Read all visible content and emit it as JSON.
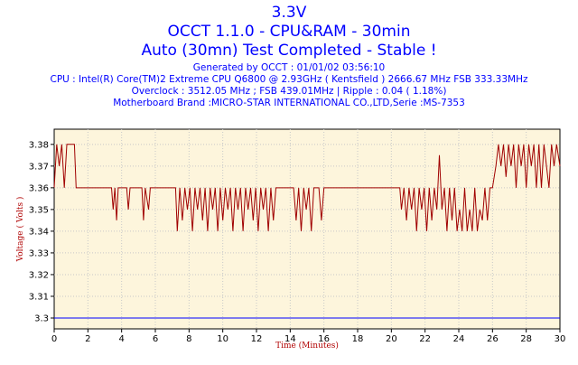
{
  "header": {
    "title": "3.3V",
    "subtitle": "OCCT 1.1.0 - CPU&RAM - 30min",
    "status": "Auto (30mn) Test Completed - Stable !",
    "generated": "Generated by OCCT : 01/01/02 03:56:10",
    "cpu": "CPU : Intel(R) Core(TM)2 Extreme CPU Q6800  @ 2.93GHz ( Kentsfield ) 2666.67 MHz FSB 333.33MHz",
    "overclock": "Overclock : 3512.05 MHz ; FSB 439.01MHz | Ripple : 0.04 ( 1.18%)",
    "motherboard": "Motherboard Brand :MICRO-STAR INTERNATIONAL CO.,LTD,Serie :MS-7353"
  },
  "colors": {
    "title": "#0000ff",
    "plot_bg": "#fdf5dc",
    "series": "#a00000",
    "reference": "#0000ff",
    "grid": "#c8c8c8"
  },
  "chart_data": {
    "type": "line",
    "xlabel": "Time (Minutes)",
    "ylabel": "Voltage ( Volts )",
    "xlim": [
      0,
      30
    ],
    "ylim": [
      3.295,
      3.387
    ],
    "xticks": [
      0,
      2,
      4,
      6,
      8,
      10,
      12,
      14,
      16,
      18,
      20,
      22,
      24,
      26,
      28,
      30
    ],
    "yticks": [
      3.3,
      3.31,
      3.32,
      3.33,
      3.34,
      3.35,
      3.36,
      3.37,
      3.38
    ],
    "grid": true,
    "reference_line": {
      "value": 3.3
    },
    "series": [
      {
        "values": [
          [
            0,
            3.36
          ],
          [
            0.15,
            3.38
          ],
          [
            0.3,
            3.37
          ],
          [
            0.45,
            3.38
          ],
          [
            0.6,
            3.36
          ],
          [
            0.75,
            3.38
          ],
          [
            1.0,
            3.38
          ],
          [
            1.2,
            3.38
          ],
          [
            1.3,
            3.36
          ],
          [
            3.4,
            3.36
          ],
          [
            3.5,
            3.35
          ],
          [
            3.6,
            3.36
          ],
          [
            3.7,
            3.345
          ],
          [
            3.8,
            3.36
          ],
          [
            4.3,
            3.36
          ],
          [
            4.4,
            3.35
          ],
          [
            4.5,
            3.36
          ],
          [
            5.2,
            3.36
          ],
          [
            5.3,
            3.345
          ],
          [
            5.4,
            3.36
          ],
          [
            5.6,
            3.35
          ],
          [
            5.7,
            3.36
          ],
          [
            7.2,
            3.36
          ],
          [
            7.3,
            3.34
          ],
          [
            7.45,
            3.36
          ],
          [
            7.6,
            3.345
          ],
          [
            7.75,
            3.36
          ],
          [
            7.9,
            3.35
          ],
          [
            8.05,
            3.36
          ],
          [
            8.2,
            3.34
          ],
          [
            8.35,
            3.36
          ],
          [
            8.5,
            3.35
          ],
          [
            8.65,
            3.36
          ],
          [
            8.8,
            3.345
          ],
          [
            8.95,
            3.36
          ],
          [
            9.1,
            3.34
          ],
          [
            9.25,
            3.36
          ],
          [
            9.4,
            3.35
          ],
          [
            9.55,
            3.36
          ],
          [
            9.7,
            3.34
          ],
          [
            9.85,
            3.36
          ],
          [
            10.0,
            3.345
          ],
          [
            10.15,
            3.36
          ],
          [
            10.3,
            3.35
          ],
          [
            10.45,
            3.36
          ],
          [
            10.6,
            3.34
          ],
          [
            10.75,
            3.36
          ],
          [
            10.9,
            3.35
          ],
          [
            11.05,
            3.36
          ],
          [
            11.2,
            3.34
          ],
          [
            11.35,
            3.36
          ],
          [
            11.5,
            3.35
          ],
          [
            11.65,
            3.36
          ],
          [
            11.8,
            3.345
          ],
          [
            11.95,
            3.36
          ],
          [
            12.1,
            3.34
          ],
          [
            12.25,
            3.36
          ],
          [
            12.4,
            3.35
          ],
          [
            12.55,
            3.36
          ],
          [
            12.7,
            3.34
          ],
          [
            12.85,
            3.36
          ],
          [
            13.0,
            3.345
          ],
          [
            13.15,
            3.36
          ],
          [
            14.2,
            3.36
          ],
          [
            14.35,
            3.345
          ],
          [
            14.5,
            3.36
          ],
          [
            14.65,
            3.34
          ],
          [
            14.8,
            3.36
          ],
          [
            14.95,
            3.35
          ],
          [
            15.1,
            3.36
          ],
          [
            15.25,
            3.34
          ],
          [
            15.4,
            3.36
          ],
          [
            15.7,
            3.36
          ],
          [
            15.85,
            3.345
          ],
          [
            16.0,
            3.36
          ],
          [
            20.5,
            3.36
          ],
          [
            20.6,
            3.35
          ],
          [
            20.75,
            3.36
          ],
          [
            20.9,
            3.345
          ],
          [
            21.05,
            3.36
          ],
          [
            21.2,
            3.35
          ],
          [
            21.35,
            3.36
          ],
          [
            21.5,
            3.34
          ],
          [
            21.65,
            3.36
          ],
          [
            21.8,
            3.35
          ],
          [
            21.95,
            3.36
          ],
          [
            22.1,
            3.34
          ],
          [
            22.25,
            3.36
          ],
          [
            22.4,
            3.345
          ],
          [
            22.55,
            3.36
          ],
          [
            22.7,
            3.35
          ],
          [
            22.85,
            3.375
          ],
          [
            23.0,
            3.35
          ],
          [
            23.15,
            3.36
          ],
          [
            23.3,
            3.34
          ],
          [
            23.45,
            3.36
          ],
          [
            23.6,
            3.345
          ],
          [
            23.75,
            3.36
          ],
          [
            23.9,
            3.34
          ],
          [
            24.05,
            3.35
          ],
          [
            24.2,
            3.34
          ],
          [
            24.35,
            3.36
          ],
          [
            24.5,
            3.34
          ],
          [
            24.65,
            3.35
          ],
          [
            24.8,
            3.34
          ],
          [
            24.95,
            3.36
          ],
          [
            25.1,
            3.34
          ],
          [
            25.25,
            3.35
          ],
          [
            25.4,
            3.345
          ],
          [
            25.55,
            3.36
          ],
          [
            25.7,
            3.345
          ],
          [
            25.85,
            3.36
          ],
          [
            26.0,
            3.36
          ],
          [
            26.2,
            3.37
          ],
          [
            26.35,
            3.38
          ],
          [
            26.5,
            3.37
          ],
          [
            26.65,
            3.38
          ],
          [
            26.8,
            3.365
          ],
          [
            26.95,
            3.38
          ],
          [
            27.1,
            3.37
          ],
          [
            27.25,
            3.38
          ],
          [
            27.4,
            3.36
          ],
          [
            27.55,
            3.38
          ],
          [
            27.7,
            3.37
          ],
          [
            27.85,
            3.38
          ],
          [
            28.0,
            3.36
          ],
          [
            28.15,
            3.38
          ],
          [
            28.3,
            3.37
          ],
          [
            28.45,
            3.38
          ],
          [
            28.6,
            3.36
          ],
          [
            28.75,
            3.38
          ],
          [
            28.9,
            3.36
          ],
          [
            29.05,
            3.38
          ],
          [
            29.2,
            3.37
          ],
          [
            29.35,
            3.36
          ],
          [
            29.5,
            3.38
          ],
          [
            29.65,
            3.37
          ],
          [
            29.8,
            3.38
          ],
          [
            30.0,
            3.37
          ]
        ]
      }
    ]
  }
}
